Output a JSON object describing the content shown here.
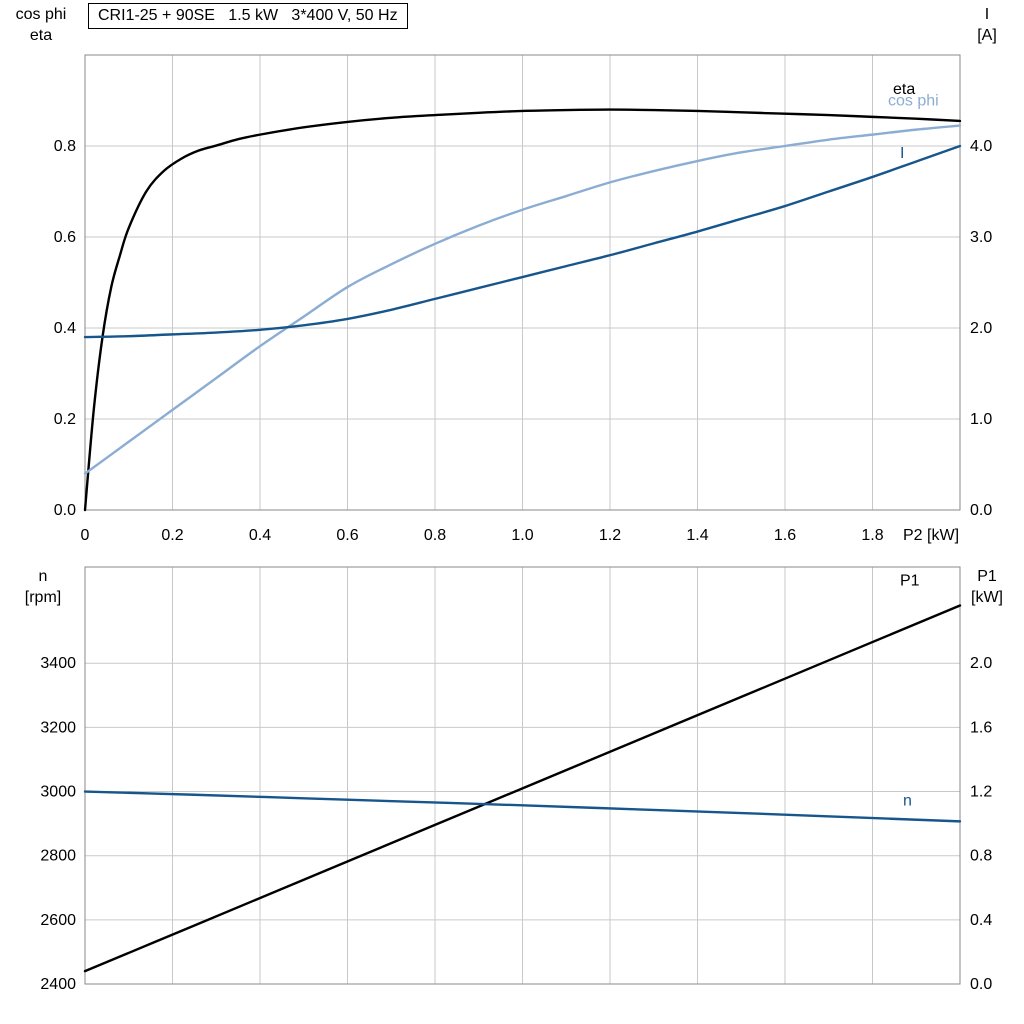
{
  "colors": {
    "black": "#000000",
    "dark_blue": "#17568c",
    "light_blue": "#8badd3",
    "grid": "#c9c9c9",
    "frame": "#8a8a8a"
  },
  "chart_data": [
    {
      "type": "line",
      "title": "CRI1-25 + 90SE   1.5 kW   3*400 V, 50 Hz",
      "x_axis": {
        "label": "P2 [kW]",
        "lim": [
          0,
          2.0
        ],
        "ticks": [
          0,
          0.2,
          0.4,
          0.6,
          0.8,
          1.0,
          1.2,
          1.4,
          1.6,
          1.8
        ],
        "tick_labels": [
          "0",
          "0.2",
          "0.4",
          "0.6",
          "0.8",
          "1.0",
          "1.2",
          "1.4",
          "1.6",
          "1.8"
        ]
      },
      "left_axis": {
        "title_lines": [
          "cos phi",
          "eta"
        ],
        "lim": [
          0,
          1.0
        ],
        "ticks": [
          0,
          0.2,
          0.4,
          0.6,
          0.8
        ],
        "tick_labels": [
          "0.0",
          "0.2",
          "0.4",
          "0.6",
          "0.8"
        ]
      },
      "right_axis": {
        "title_lines": [
          "I",
          "[A]"
        ],
        "lim": [
          0,
          5.0
        ],
        "ticks": [
          0,
          1,
          2,
          3,
          4
        ],
        "tick_labels": [
          "0.0",
          "1.0",
          "2.0",
          "3.0",
          "4.0"
        ]
      },
      "grid": true,
      "legend_position": "curve-end-labels",
      "series": [
        {
          "key": "eta",
          "name": "eta",
          "axis": "left",
          "color": "black",
          "x": [
            0,
            0.02,
            0.04,
            0.06,
            0.08,
            0.1,
            0.14,
            0.18,
            0.22,
            0.26,
            0.3,
            0.35,
            0.4,
            0.5,
            0.6,
            0.7,
            0.8,
            0.9,
            1.0,
            1.1,
            1.2,
            1.3,
            1.4,
            1.5,
            1.6,
            1.7,
            1.8,
            1.9,
            2.0
          ],
          "y": [
            0,
            0.22,
            0.38,
            0.49,
            0.56,
            0.62,
            0.7,
            0.745,
            0.772,
            0.79,
            0.801,
            0.815,
            0.825,
            0.841,
            0.853,
            0.862,
            0.868,
            0.873,
            0.877,
            0.879,
            0.88,
            0.879,
            0.877,
            0.874,
            0.871,
            0.868,
            0.864,
            0.86,
            0.855
          ]
        },
        {
          "key": "cos-phi",
          "name": "cos phi",
          "axis": "left",
          "color": "light_blue",
          "x": [
            0,
            0.1,
            0.2,
            0.3,
            0.4,
            0.5,
            0.6,
            0.7,
            0.8,
            0.9,
            1.0,
            1.1,
            1.2,
            1.3,
            1.4,
            1.5,
            1.6,
            1.7,
            1.8,
            1.9,
            2.0
          ],
          "y": [
            0.08,
            0.15,
            0.22,
            0.29,
            0.36,
            0.425,
            0.49,
            0.54,
            0.585,
            0.625,
            0.66,
            0.69,
            0.72,
            0.745,
            0.767,
            0.786,
            0.8,
            0.814,
            0.825,
            0.836,
            0.845
          ]
        },
        {
          "key": "current",
          "name": "I",
          "axis": "right",
          "color": "dark_blue",
          "x": [
            0,
            0.1,
            0.2,
            0.3,
            0.4,
            0.5,
            0.6,
            0.7,
            0.8,
            0.9,
            1.0,
            1.1,
            1.2,
            1.3,
            1.4,
            1.5,
            1.6,
            1.7,
            1.8,
            1.9,
            2.0
          ],
          "y": [
            1.9,
            1.91,
            1.93,
            1.95,
            1.98,
            2.03,
            2.1,
            2.2,
            2.32,
            2.44,
            2.56,
            2.68,
            2.8,
            2.93,
            3.06,
            3.2,
            3.34,
            3.5,
            3.66,
            3.83,
            4.0
          ]
        }
      ]
    },
    {
      "type": "line",
      "title": "",
      "x_axis": {
        "label": "",
        "lim": [
          0,
          2.0
        ],
        "ticks": [
          0,
          0.2,
          0.4,
          0.6,
          0.8,
          1.0,
          1.2,
          1.4,
          1.6,
          1.8
        ],
        "tick_labels": null
      },
      "left_axis": {
        "title_lines": [
          "n",
          "[rpm]"
        ],
        "lim": [
          2400,
          3700
        ],
        "ticks": [
          2400,
          2600,
          2800,
          3000,
          3200,
          3400
        ],
        "tick_labels": [
          "2400",
          "2600",
          "2800",
          "3000",
          "3200",
          "3400"
        ]
      },
      "right_axis": {
        "title_lines": [
          "P1",
          "[kW]"
        ],
        "lim": [
          0,
          2.6
        ],
        "ticks": [
          0,
          0.4,
          0.8,
          1.2,
          1.6,
          2.0
        ],
        "tick_labels": [
          "0.0",
          "0.4",
          "0.8",
          "1.2",
          "1.6",
          "2.0"
        ]
      },
      "grid": true,
      "legend_position": "curve-end-labels",
      "series": [
        {
          "key": "p1",
          "name": "P1",
          "axis": "right",
          "color": "black",
          "x": [
            0,
            0.25,
            0.5,
            0.75,
            1.0,
            1.25,
            1.5,
            1.75,
            2.0
          ],
          "y": [
            0.08,
            0.365,
            0.65,
            0.935,
            1.22,
            1.505,
            1.79,
            2.075,
            2.36
          ]
        },
        {
          "key": "n",
          "name": "n",
          "axis": "left",
          "color": "dark_blue",
          "x": [
            0,
            0.25,
            0.5,
            0.75,
            1.0,
            1.25,
            1.5,
            1.75,
            2.0
          ],
          "y": [
            3000,
            2990,
            2979,
            2968,
            2957,
            2945,
            2933,
            2920,
            2907
          ]
        }
      ]
    }
  ]
}
